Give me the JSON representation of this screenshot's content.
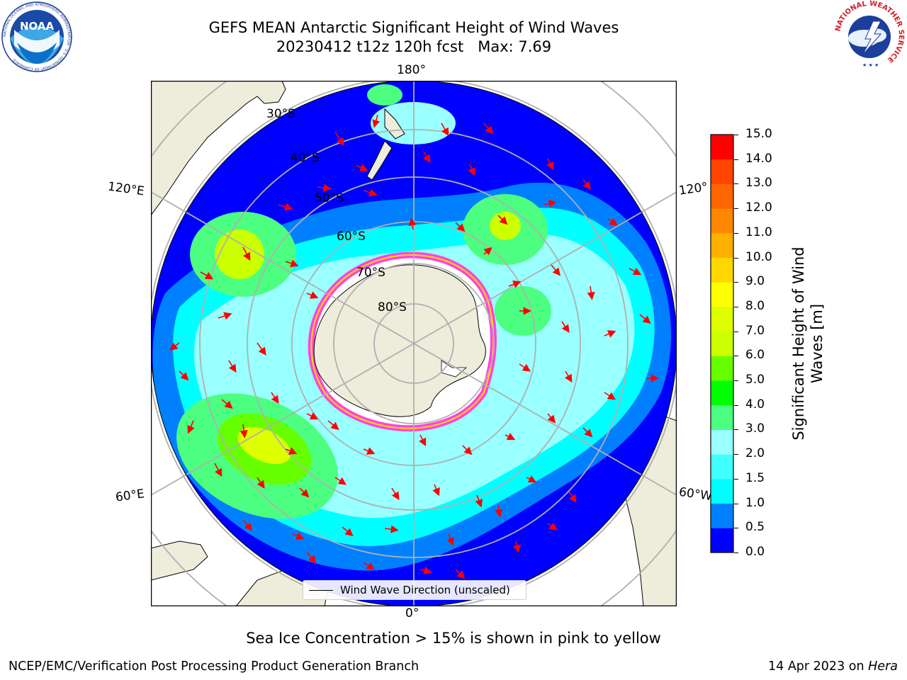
{
  "title": {
    "line1": "GEFS MEAN Antarctic Significant Height of Wind Waves",
    "line2": "20230412 t12z 120h fcst   Max: 7.69"
  },
  "logos": {
    "left": {
      "name": "noaa-logo",
      "text": "NOAA",
      "ring_text": "NATIONAL OCEANIC AND ATMOSPHERIC ADMINISTRATION · U.S. DEPARTMENT OF COMMERCE"
    },
    "right": {
      "name": "nws-logo",
      "ring_text": "NATIONAL WEATHER SERVICE"
    }
  },
  "map": {
    "projection": "south-polar-stereographic",
    "longitude_labels": {
      "top": "180°",
      "bottom": "0°",
      "upper_left": "120°E",
      "upper_right": "120°",
      "lower_left": "60°E",
      "lower_right": "60°W"
    },
    "latitude_labels": [
      "30°S",
      "40°S",
      "50°S",
      "60°S",
      "70°S",
      "80°S"
    ],
    "legend_label": "Wind Wave Direction (unscaled)",
    "sea_ice_note": "Sea Ice Concentration > 15% is shown in pink to yellow",
    "land_color": "#eeecdb",
    "arrow_color": "#ff0000"
  },
  "colorbar": {
    "title_line1": "Significant Height of Wind",
    "title_line2": "Waves [m]",
    "ticks": [
      "0.0",
      "0.5",
      "1.0",
      "1.5",
      "2.0",
      "3.0",
      "4.0",
      "5.0",
      "6.0",
      "7.0",
      "8.0",
      "9.0",
      "10.0",
      "11.0",
      "12.0",
      "13.0",
      "14.0",
      "15.0"
    ],
    "colors": [
      "#0000ff",
      "#0080ff",
      "#00ffff",
      "#40ffff",
      "#99ffff",
      "#4dff80",
      "#00ff00",
      "#66ff00",
      "#ccff00",
      "#ddff00",
      "#ffff00",
      "#ffd700",
      "#ffb000",
      "#ff8800",
      "#ff6600",
      "#ff4400",
      "#ff0000"
    ]
  },
  "footer": {
    "left": "NCEP/EMC/Verification Post Processing Product Generation Branch",
    "right_prefix": "14 Apr 2023 on ",
    "right_host": "Hera"
  }
}
